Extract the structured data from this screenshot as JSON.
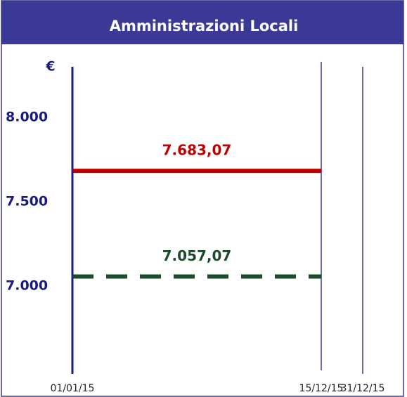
{
  "chart_data": {
    "type": "line",
    "title": "Amministrazioni Locali",
    "y_label": "€",
    "categories": [
      "01/01/15",
      "15/12/15",
      "31/12/15"
    ],
    "series": [
      {
        "color": "#c00000",
        "dashed": false,
        "values": [
          7683.07,
          7683.07,
          null
        ],
        "value_label": "7.683,07"
      },
      {
        "color": "#1b4a2a",
        "dashed": true,
        "values": [
          7057.07,
          7057.07,
          null
        ],
        "value_label": "7.057,07"
      }
    ],
    "ylim": [
      6480,
      8300
    ],
    "yticks": [
      {
        "value": 7000,
        "label": "7.000"
      },
      {
        "value": 7500,
        "label": "7.500"
      },
      {
        "value": 8000,
        "label": "8.000"
      }
    ]
  }
}
